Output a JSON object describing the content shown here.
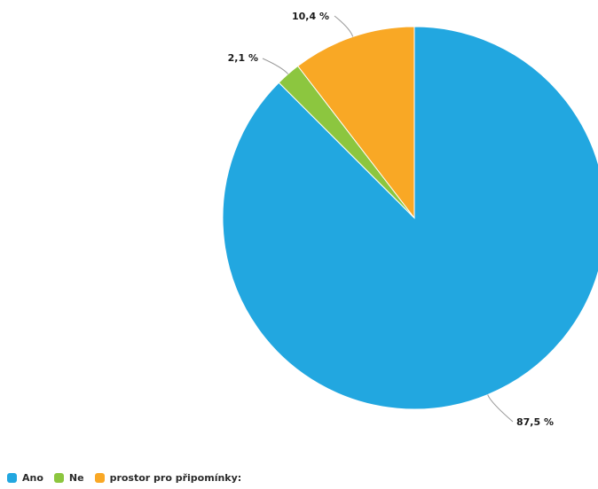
{
  "chart_data": {
    "type": "pie",
    "categories": [
      "Ano",
      "Ne",
      "prostor pro připomínky:"
    ],
    "values": [
      87.5,
      2.1,
      10.4
    ],
    "data_labels": [
      "87,5 %",
      "2,1 %",
      "10,4 %"
    ],
    "colors": [
      "#22a7e0",
      "#8cc63f",
      "#f9a825"
    ],
    "legend_position": "bottom-left",
    "title": "",
    "start_angle": "12 o'clock, clockwise"
  }
}
